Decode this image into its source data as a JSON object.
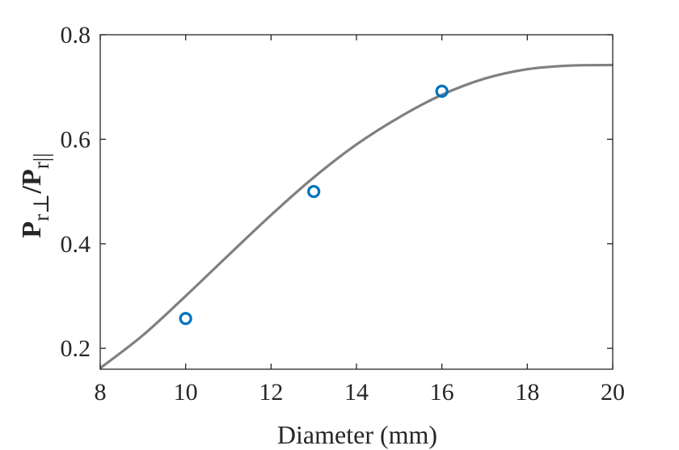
{
  "chart_data": {
    "type": "scatter",
    "xlabel": "Diameter (mm)",
    "ylabel": {
      "base": "P",
      "numerator_sub": "r⊥",
      "separator": "/",
      "denominator_sub": "r||"
    },
    "xlim": [
      8,
      20
    ],
    "ylim": [
      0.16,
      0.8
    ],
    "x_ticks": [
      8,
      10,
      12,
      14,
      16,
      18,
      20
    ],
    "y_ticks": [
      0.2,
      0.4,
      0.6,
      0.8
    ],
    "x_tick_labels": [
      "8",
      "10",
      "12",
      "14",
      "16",
      "18",
      "20"
    ],
    "y_tick_labels": [
      "0.2",
      "0.4",
      "0.6",
      "0.8"
    ],
    "grid": false,
    "legend": false,
    "colors": {
      "curve": "#808080",
      "markers": "#0072BD",
      "axes": "#262626"
    },
    "series": [
      {
        "kind": "line",
        "x": [
          8,
          9,
          10,
          11,
          12,
          13,
          14,
          15,
          16,
          17,
          18,
          19,
          20
        ],
        "y": [
          0.162,
          0.225,
          0.3,
          0.378,
          0.455,
          0.527,
          0.59,
          0.642,
          0.685,
          0.716,
          0.734,
          0.741,
          0.742
        ]
      },
      {
        "kind": "markers",
        "marker": "circle",
        "x": [
          10,
          13,
          16
        ],
        "y": [
          0.257,
          0.5,
          0.692
        ]
      }
    ]
  }
}
